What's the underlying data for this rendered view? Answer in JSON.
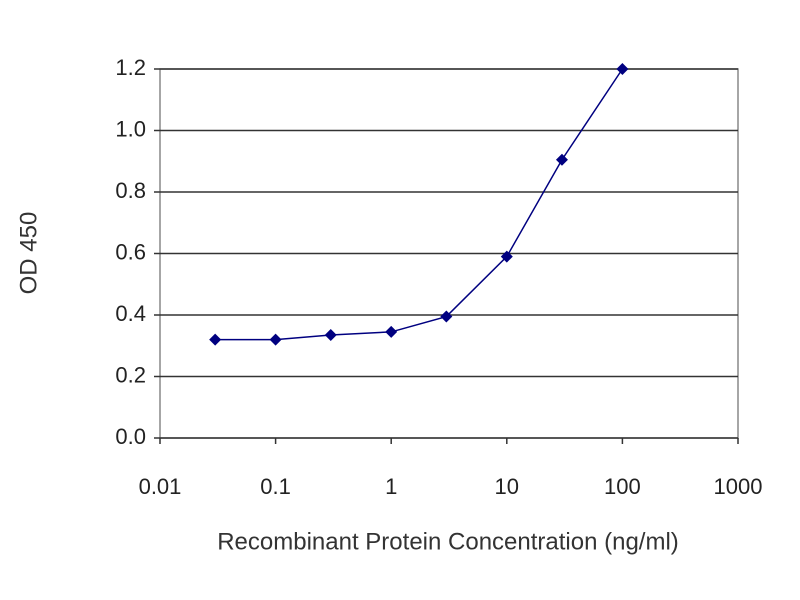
{
  "chart_data": {
    "type": "line",
    "log_x": true,
    "grid": true,
    "x_label": "Recombinant Protein Concentration (ng/ml)",
    "y_label": "OD 450",
    "x": [
      0.03,
      0.1,
      0.3,
      1,
      3,
      10,
      30,
      100
    ],
    "series": [
      {
        "name": "OD 450",
        "color": "#000080",
        "values": [
          0.32,
          0.32,
          0.335,
          0.345,
          0.395,
          0.59,
          0.905,
          1.2
        ]
      }
    ],
    "xlim": [
      0.01,
      1000
    ],
    "xticks": [
      0.01,
      0.1,
      1,
      10,
      100,
      1000
    ],
    "ylim": [
      0,
      1.2
    ],
    "yticks": [
      {
        "value": 0,
        "label": "0.0"
      },
      0.2,
      0.4,
      0.6,
      0.8,
      {
        "value": 1,
        "label": "1.0"
      },
      1.2
    ]
  }
}
